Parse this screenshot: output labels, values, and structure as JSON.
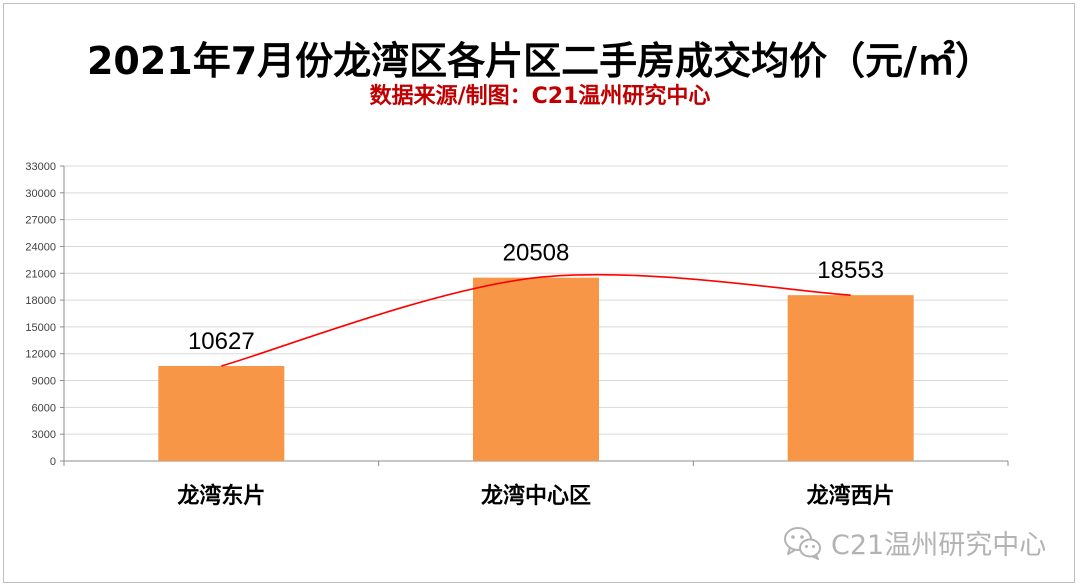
{
  "chart_data": {
    "type": "bar",
    "title": "2021年7月份龙湾区各片区二手房成交均价（元/㎡）",
    "subtitle": "数据来源/制图：C21温州研究中心",
    "categories": [
      "龙湾东片",
      "龙湾中心区",
      "龙湾西片"
    ],
    "values": [
      10627,
      20508,
      18553
    ],
    "data_labels": [
      "10627",
      "20508",
      "18553"
    ],
    "ylim": [
      0,
      33000
    ],
    "yticks": [
      0,
      3000,
      6000,
      9000,
      12000,
      15000,
      18000,
      21000,
      24000,
      27000,
      30000,
      33000
    ],
    "grid": true,
    "trendline": true,
    "bar_color": "#f79646",
    "trend_color": "#ff0000"
  },
  "watermark": {
    "text": "C21温州研究中心",
    "icon": "wechat-icon"
  }
}
